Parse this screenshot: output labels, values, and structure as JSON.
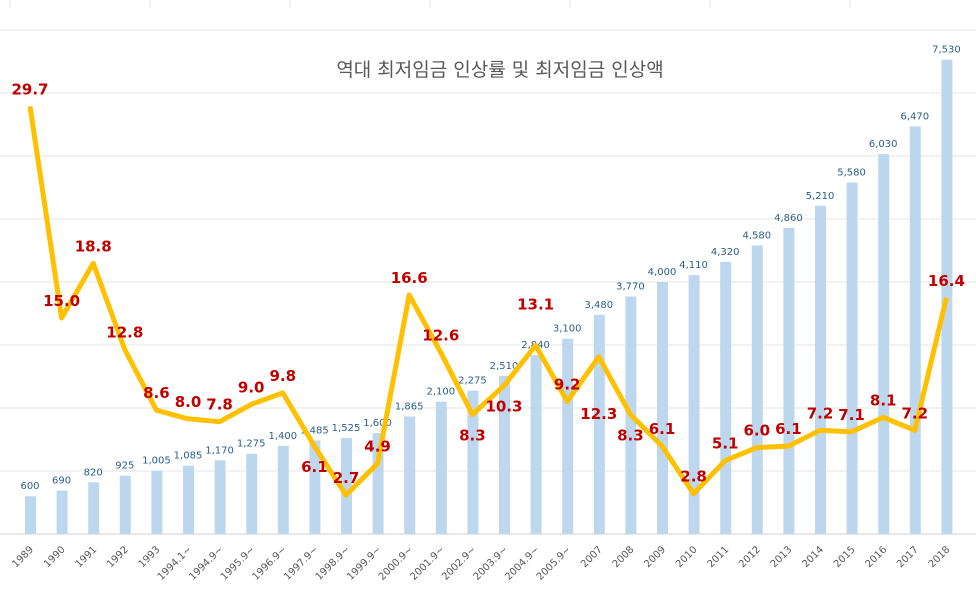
{
  "chart_data": {
    "type": "bar+line",
    "title": "역대 최저임금 인상률 및 최저임금 인상액",
    "categories": [
      "1989",
      "1990",
      "1991",
      "1992",
      "1993",
      "1994.1~",
      "1994.9~",
      "1995.9~",
      "1996.9~",
      "1997.9~",
      "1998.9~",
      "1999.9~",
      "2000.9~",
      "2001.9~",
      "2002.9~",
      "2003.9~",
      "2004.9~",
      "2005.9~",
      "2007",
      "2008",
      "2009",
      "2010",
      "2011",
      "2012",
      "2013",
      "2014",
      "2015",
      "2016",
      "2017",
      "2018"
    ],
    "series": [
      {
        "type": "bar",
        "color": "#bdd7ee",
        "values": [
          600,
          690,
          820,
          925,
          1005,
          1085,
          1170,
          1275,
          1400,
          1485,
          1525,
          1600,
          1865,
          2100,
          2275,
          2510,
          2840,
          3100,
          3480,
          3770,
          4000,
          4110,
          4320,
          4580,
          4860,
          5210,
          5580,
          6030,
          6470,
          7530
        ],
        "labels": [
          "600",
          "690",
          "820",
          "925",
          "1,005",
          "1,085",
          "1,170",
          "1,275",
          "1,400",
          "1,485",
          "1,525",
          "1,600",
          "1,865",
          "2,100",
          "2,275",
          "2,510",
          "2,840",
          "3,100",
          "3,480",
          "3,770",
          "4,000",
          "4,110",
          "4,320",
          "4,580",
          "4,860",
          "5,210",
          "5,580",
          "6,030",
          "6,470",
          "7,530"
        ]
      },
      {
        "type": "line",
        "axis": "secondary",
        "color": "#ffc000",
        "values": [
          29.7,
          15.0,
          18.8,
          12.8,
          8.6,
          8.0,
          7.8,
          9.0,
          9.8,
          6.1,
          2.7,
          4.9,
          16.6,
          12.6,
          8.3,
          10.3,
          13.1,
          9.2,
          12.3,
          8.3,
          6.1,
          2.8,
          5.1,
          6.0,
          6.1,
          7.2,
          7.1,
          8.1,
          7.2,
          16.4
        ]
      }
    ],
    "ylim": [
      0,
      8000
    ],
    "y2lim": [
      0,
      35
    ],
    "grid": true,
    "label_color": "#c00000"
  }
}
